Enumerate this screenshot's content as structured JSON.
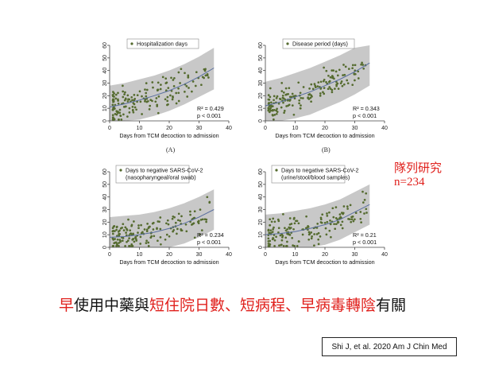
{
  "chart_data": [
    {
      "type": "scatter",
      "legend": [
        "Hospitalization days"
      ],
      "xlabel": "Days from TCM decoction to admission",
      "ylabel": "",
      "xlim": [
        0,
        40
      ],
      "ylim": [
        0,
        60
      ],
      "xticks": [
        0,
        10,
        20,
        30,
        40
      ],
      "yticks": [
        0,
        10,
        20,
        30,
        40,
        50,
        60
      ],
      "stats": [
        "R² = 0.429",
        "p < 0.001"
      ],
      "panel_label": "(A)",
      "fit": {
        "x": [
          0,
          5,
          10,
          15,
          20,
          25,
          30,
          35
        ],
        "y": [
          11,
          13.5,
          16.5,
          20,
          24,
          29,
          35,
          42
        ]
      },
      "ci_upper": [
        28,
        30,
        33,
        36,
        40,
        45,
        51,
        58
      ],
      "ci_lower": [
        0,
        0,
        1,
        4,
        8,
        13,
        19,
        25
      ]
    },
    {
      "type": "scatter",
      "legend": [
        "Disease period (days)"
      ],
      "xlabel": "Days from TCM decoction to admission",
      "ylabel": "",
      "xlim": [
        0,
        40
      ],
      "ylim": [
        0,
        60
      ],
      "xticks": [
        0,
        10,
        20,
        30,
        40
      ],
      "yticks": [
        0,
        10,
        20,
        30,
        40,
        50,
        60
      ],
      "stats": [
        "R² = 0.343",
        "p < 0.001"
      ],
      "panel_label": "(B)",
      "fit": {
        "x": [
          0,
          5,
          10,
          15,
          20,
          25,
          30,
          35
        ],
        "y": [
          12,
          15,
          19,
          23,
          28,
          33,
          39,
          46
        ]
      },
      "ci_upper": [
        31,
        34,
        38,
        42,
        47,
        52,
        58,
        62
      ],
      "ci_lower": [
        0,
        0,
        2,
        5,
        10,
        15,
        21,
        28
      ]
    },
    {
      "type": "scatter",
      "legend": [
        "Days to negative SARS-CoV-2",
        "(nasopharyngeal/oral swab)"
      ],
      "xlabel": "Days from TCM decoction to admission",
      "ylabel": "",
      "xlim": [
        0,
        40
      ],
      "ylim": [
        0,
        60
      ],
      "xticks": [
        0,
        10,
        20,
        30,
        40
      ],
      "yticks": [
        0,
        10,
        20,
        30,
        40,
        50,
        60
      ],
      "stats": [
        "R² = 0.234",
        "p < 0.001"
      ],
      "panel_label": "",
      "fit": {
        "x": [
          0,
          5,
          10,
          15,
          20,
          25,
          30,
          35
        ],
        "y": [
          8,
          8.5,
          10,
          12,
          15,
          19,
          24,
          30
        ]
      },
      "ci_upper": [
        24,
        25,
        26,
        28,
        31,
        35,
        40,
        46
      ],
      "ci_lower": [
        0,
        0,
        0,
        0,
        0,
        3,
        8,
        14
      ]
    },
    {
      "type": "scatter",
      "legend": [
        "Days to negative SARS-CoV-2",
        "(urine/stool/blood samples)"
      ],
      "xlabel": "Days from TCM decoction to admission",
      "ylabel": "",
      "xlim": [
        0,
        40
      ],
      "ylim": [
        0,
        60
      ],
      "xticks": [
        0,
        10,
        20,
        30,
        40
      ],
      "yticks": [
        0,
        10,
        20,
        30,
        40,
        50,
        60
      ],
      "stats": [
        "R² = 0.21",
        "p < 0.001"
      ],
      "panel_label": "",
      "fit": {
        "x": [
          0,
          5,
          10,
          15,
          20,
          25,
          30,
          35
        ],
        "y": [
          10,
          11,
          12.5,
          15,
          18,
          22,
          28,
          34
        ]
      },
      "ci_upper": [
        26,
        27,
        29,
        31,
        34,
        38,
        44,
        50
      ],
      "ci_lower": [
        0,
        0,
        0,
        0,
        2,
        6,
        12,
        18
      ]
    }
  ],
  "side_note": {
    "line1": "隊列研究",
    "line2": "n=234"
  },
  "conclusion": {
    "p1": "早",
    "p2": "使用中藥與",
    "p3": "短住院日數、短病程、早病毒轉陰",
    "p4": "有關"
  },
  "citation": "Shi J, et al. 2020 Am J Chin Med",
  "colors": {
    "accent": "#e0201c",
    "dot": "#556b2f",
    "fit": "#5a6fa0",
    "ci": "#c8c8c8"
  }
}
